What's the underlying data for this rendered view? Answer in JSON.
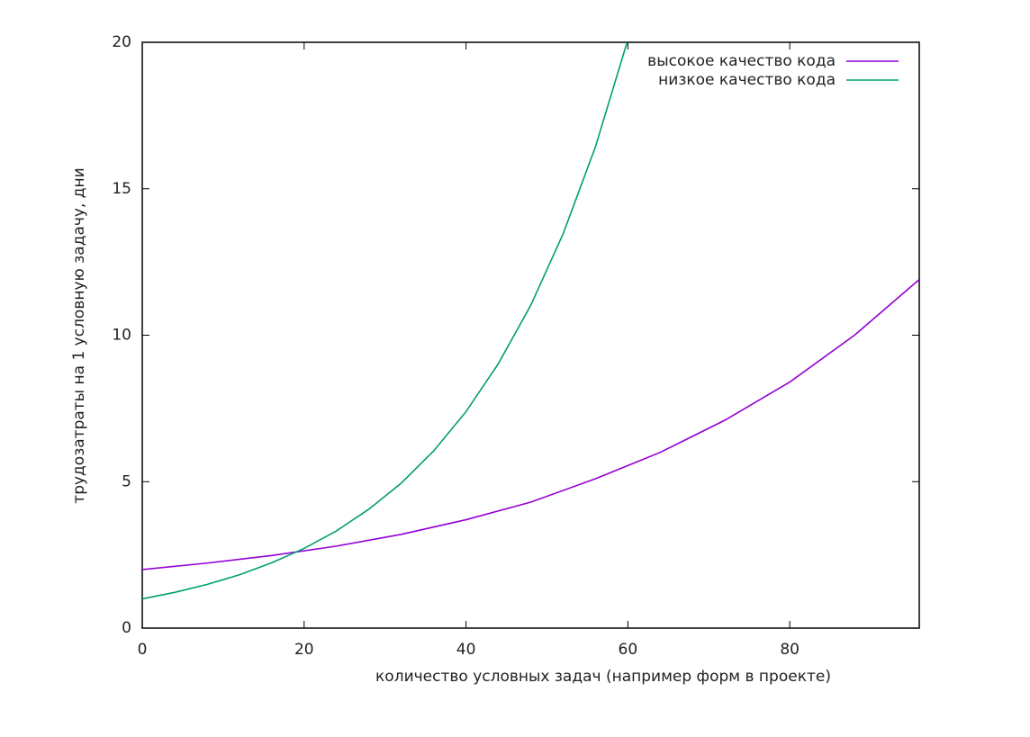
{
  "chart_data": {
    "type": "line",
    "xlabel": "количество условных задач (например форм в проекте)",
    "ylabel": "трудозатраты на 1 условную задачу, дни",
    "xlim": [
      0,
      96
    ],
    "ylim": [
      0,
      20
    ],
    "xticks": [
      0,
      20,
      40,
      60,
      80
    ],
    "yticks": [
      0,
      5,
      10,
      15,
      20
    ],
    "legend": "upper right",
    "series": [
      {
        "name": "высокое качество кода",
        "color": "#9400d3",
        "x": [
          0,
          8,
          16,
          24,
          32,
          40,
          48,
          56,
          64,
          72,
          80,
          88,
          96
        ],
        "values": [
          2.0,
          2.22,
          2.48,
          2.8,
          3.2,
          3.7,
          4.3,
          5.1,
          6.0,
          7.1,
          8.4,
          10.0,
          11.9
        ]
      },
      {
        "name": "низкое качество кода",
        "color": "#009e73",
        "x": [
          0,
          4,
          8,
          12,
          16,
          20,
          24,
          28,
          32,
          36,
          40,
          44,
          48,
          52,
          56,
          60
        ],
        "values": [
          1,
          1.22,
          1.49,
          1.82,
          2.23,
          2.72,
          3.32,
          4.06,
          4.95,
          6.05,
          7.39,
          9.03,
          11.02,
          13.46,
          16.44,
          20.09
        ]
      }
    ]
  }
}
